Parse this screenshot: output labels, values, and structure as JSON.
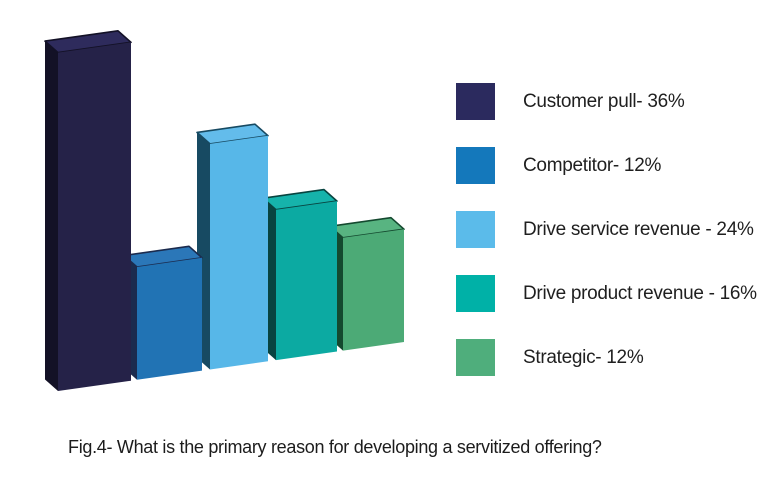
{
  "figure": {
    "caption": "Fig.4- What is the primary reason for developing a servitized offering?"
  },
  "chart_data": {
    "type": "bar",
    "projection": "3d-perspective",
    "categories": [
      "Customer pull",
      "Competitor",
      "Drive service revenue",
      "Drive product revenue",
      "Strategic"
    ],
    "values": [
      36,
      12,
      24,
      16,
      12
    ],
    "unit": "%",
    "title": "Fig.4- What is the primary reason for developing a servitized offering?",
    "xlabel": "",
    "ylabel": "",
    "axes_visible": false,
    "grid": false,
    "legend_position": "right",
    "bar_face_colors": [
      {
        "front": "#252248",
        "side": "#131126",
        "top": "#2e2b5c"
      },
      {
        "front": "#2173b4",
        "side": "#1b2b4e",
        "top": "#2b77b8"
      },
      {
        "front": "#57b7e8",
        "side": "#174a62",
        "top": "#63bceb"
      },
      {
        "front": "#0caaa2",
        "side": "#084440",
        "top": "#16b3ab"
      },
      {
        "front": "#4caa76",
        "side": "#14492f",
        "top": "#58b481"
      }
    ]
  },
  "legend": {
    "items": [
      {
        "label": "Customer pull- 36%",
        "color": "#2b2a5e"
      },
      {
        "label": "Competitor- 12%",
        "color": "#1478bb"
      },
      {
        "label": "Drive service revenue - 24%",
        "color": "#5bbbea"
      },
      {
        "label": "Drive product revenue - 16%",
        "color": "#00b1a7"
      },
      {
        "label": "Strategic- 12%",
        "color": "#4fae7c"
      }
    ]
  }
}
